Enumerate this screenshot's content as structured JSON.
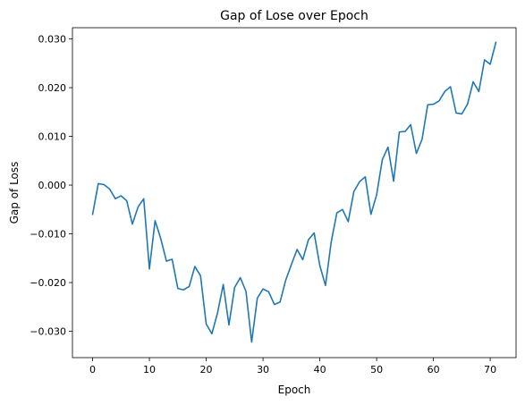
{
  "chart_data": {
    "type": "line",
    "title": "Gap of Lose over Epoch",
    "xlabel": "Epoch",
    "ylabel": "Gap of Loss",
    "xlim": [
      -3.55,
      74.55
    ],
    "ylim": [
      -0.0354,
      0.0323
    ],
    "xticks": [
      0,
      10,
      20,
      30,
      40,
      50,
      60,
      70
    ],
    "yticks": [
      -0.03,
      -0.02,
      -0.01,
      0.0,
      0.01,
      0.02,
      0.03
    ],
    "ytick_labels": [
      "−0.030",
      "−0.020",
      "−0.010",
      "0.000",
      "0.010",
      "0.020",
      "0.030"
    ],
    "grid": false,
    "legend": "none",
    "series": [
      {
        "color": "#1f77b4",
        "x": [
          0,
          1,
          2,
          3,
          4,
          5,
          6,
          7,
          8,
          9,
          10,
          11,
          12,
          13,
          14,
          15,
          16,
          17,
          18,
          19,
          20,
          21,
          22,
          23,
          24,
          25,
          26,
          27,
          28,
          29,
          30,
          31,
          32,
          33,
          34,
          35,
          36,
          37,
          38,
          39,
          40,
          41,
          42,
          43,
          44,
          45,
          46,
          47,
          48,
          49,
          50,
          51,
          52,
          53,
          54,
          55,
          56,
          57,
          58,
          59,
          60,
          61,
          62,
          63,
          64,
          65,
          66,
          67,
          68,
          69,
          70,
          71
        ],
        "values": [
          -0.006,
          0.0003,
          0.0001,
          -0.0008,
          -0.0028,
          -0.0022,
          -0.0032,
          -0.008,
          -0.0045,
          -0.0028,
          -0.0172,
          -0.0073,
          -0.011,
          -0.0156,
          -0.0152,
          -0.0212,
          -0.0215,
          -0.0208,
          -0.0167,
          -0.0186,
          -0.0285,
          -0.0305,
          -0.0262,
          -0.0204,
          -0.0287,
          -0.021,
          -0.019,
          -0.0218,
          -0.0322,
          -0.0232,
          -0.0213,
          -0.0219,
          -0.0245,
          -0.024,
          -0.0195,
          -0.0163,
          -0.0132,
          -0.0153,
          -0.0112,
          -0.0098,
          -0.0165,
          -0.0206,
          -0.0117,
          -0.0057,
          -0.005,
          -0.0075,
          -0.0013,
          0.0007,
          0.0017,
          -0.006,
          -0.002,
          0.0052,
          0.0078,
          0.0008,
          0.0109,
          0.011,
          0.0124,
          0.0065,
          0.0094,
          0.0165,
          0.0166,
          0.0173,
          0.0192,
          0.0202,
          0.0148,
          0.0146,
          0.0166,
          0.0212,
          0.0192,
          0.0257,
          0.0248,
          0.0293
        ]
      }
    ]
  }
}
